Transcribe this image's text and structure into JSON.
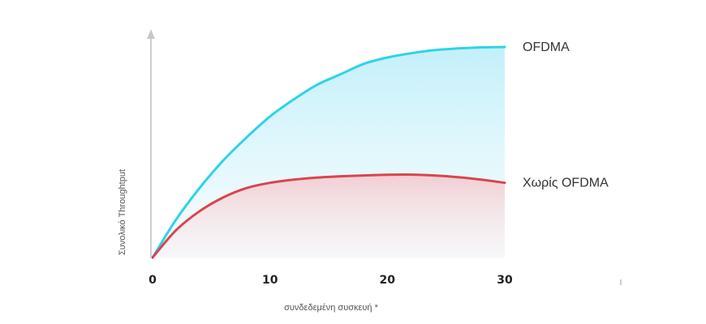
{
  "chart_data": {
    "type": "area",
    "xlabel": "συνδεδεμένη συσκευή *",
    "ylabel": "Συνολικό Throughtput",
    "xlim": [
      0,
      30
    ],
    "ylim": [
      0,
      100
    ],
    "x_ticks": [
      "0",
      "10",
      "20",
      "30"
    ],
    "grid": false,
    "legend": "inline-right",
    "series": [
      {
        "name": "OFDMA",
        "color": "#2ed3ea",
        "x": [
          0,
          2,
          4,
          6,
          8,
          10,
          12,
          14,
          16,
          18,
          20,
          22,
          24,
          26,
          28,
          30
        ],
        "values": [
          0,
          18,
          33,
          46,
          57,
          67,
          75,
          82,
          87,
          92,
          95,
          97,
          98.5,
          99.3,
          99.8,
          100
        ]
      },
      {
        "name": "Χωρίς OFDMA",
        "color": "#d9454f",
        "x": [
          0,
          2,
          4,
          6,
          8,
          10,
          12,
          14,
          16,
          18,
          20,
          22,
          24,
          26,
          28,
          30
        ],
        "values": [
          0,
          13,
          22,
          28.5,
          33,
          35.5,
          37,
          38,
          38.6,
          39,
          39.3,
          39.4,
          39,
          38.2,
          37,
          35.5
        ]
      }
    ]
  }
}
